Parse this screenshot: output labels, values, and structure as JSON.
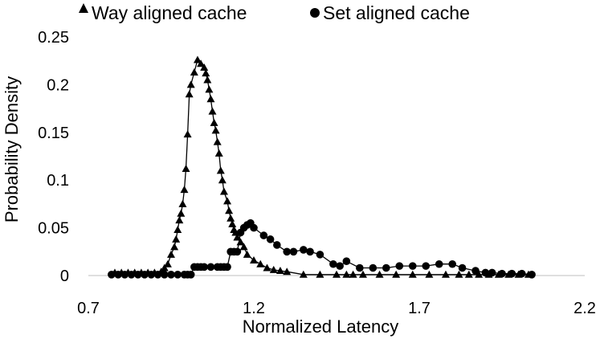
{
  "chart_data": {
    "type": "line",
    "title": "",
    "xlabel": "Normalized Latency",
    "ylabel": "Probability Density",
    "xlim": [
      0.7,
      2.2
    ],
    "ylim": [
      0,
      0.25
    ],
    "x_ticks": [
      "0.7",
      "1.2",
      "1.7",
      "2.2"
    ],
    "y_ticks": [
      "0",
      "0.05",
      "0.1",
      "0.15",
      "0.2",
      "0.25"
    ],
    "grid": false,
    "legend_position": "top",
    "series": [
      {
        "name": "Way aligned cache",
        "marker": "triangle",
        "color": "#000000",
        "points": [
          [
            0.78,
            0.003
          ],
          [
            0.8,
            0.003
          ],
          [
            0.82,
            0.003
          ],
          [
            0.84,
            0.003
          ],
          [
            0.86,
            0.003
          ],
          [
            0.88,
            0.003
          ],
          [
            0.9,
            0.003
          ],
          [
            0.92,
            0.004
          ],
          [
            0.93,
            0.008
          ],
          [
            0.94,
            0.012
          ],
          [
            0.95,
            0.022
          ],
          [
            0.96,
            0.03
          ],
          [
            0.965,
            0.038
          ],
          [
            0.97,
            0.048
          ],
          [
            0.975,
            0.058
          ],
          [
            0.98,
            0.065
          ],
          [
            0.985,
            0.075
          ],
          [
            0.99,
            0.09
          ],
          [
            0.995,
            0.112
          ],
          [
            1.0,
            0.148
          ],
          [
            1.005,
            0.19
          ],
          [
            1.01,
            0.2
          ],
          [
            1.02,
            0.213
          ],
          [
            1.03,
            0.226
          ],
          [
            1.04,
            0.222
          ],
          [
            1.05,
            0.218
          ],
          [
            1.055,
            0.212
          ],
          [
            1.06,
            0.205
          ],
          [
            1.065,
            0.195
          ],
          [
            1.07,
            0.185
          ],
          [
            1.075,
            0.172
          ],
          [
            1.08,
            0.16
          ],
          [
            1.085,
            0.152
          ],
          [
            1.09,
            0.14
          ],
          [
            1.095,
            0.128
          ],
          [
            1.1,
            0.11
          ],
          [
            1.105,
            0.1
          ],
          [
            1.11,
            0.088
          ],
          [
            1.12,
            0.078
          ],
          [
            1.125,
            0.068
          ],
          [
            1.13,
            0.06
          ],
          [
            1.135,
            0.054
          ],
          [
            1.14,
            0.048
          ],
          [
            1.145,
            0.045
          ],
          [
            1.15,
            0.04
          ],
          [
            1.16,
            0.035
          ],
          [
            1.17,
            0.03
          ],
          [
            1.18,
            0.022
          ],
          [
            1.2,
            0.016
          ],
          [
            1.22,
            0.012
          ],
          [
            1.24,
            0.008
          ],
          [
            1.26,
            0.006
          ],
          [
            1.28,
            0.005
          ],
          [
            1.3,
            0.004
          ],
          [
            1.35,
            0.001
          ],
          [
            1.4,
            0.001
          ],
          [
            1.45,
            0.001
          ],
          [
            1.48,
            0.001
          ],
          [
            1.5,
            0.001
          ],
          [
            1.53,
            0.001
          ],
          [
            1.58,
            0.001
          ],
          [
            1.63,
            0.001
          ],
          [
            1.68,
            0.001
          ],
          [
            1.73,
            0.001
          ],
          [
            1.78,
            0.001
          ],
          [
            1.82,
            0.001
          ],
          [
            1.85,
            0.001
          ],
          [
            1.88,
            0.001
          ],
          [
            1.91,
            0.001
          ],
          [
            1.94,
            0.001
          ],
          [
            1.97,
            0.001
          ],
          [
            2.0,
            0.001
          ],
          [
            2.03,
            0.001
          ]
        ]
      },
      {
        "name": "Set aligned cache",
        "marker": "circle",
        "color": "#000000",
        "points": [
          [
            0.77,
            0.001
          ],
          [
            0.79,
            0.001
          ],
          [
            0.81,
            0.001
          ],
          [
            0.83,
            0.001
          ],
          [
            0.85,
            0.001
          ],
          [
            0.87,
            0.001
          ],
          [
            0.89,
            0.001
          ],
          [
            0.91,
            0.001
          ],
          [
            0.93,
            0.001
          ],
          [
            0.95,
            0.001
          ],
          [
            0.97,
            0.001
          ],
          [
            0.99,
            0.001
          ],
          [
            1.0,
            0.001
          ],
          [
            1.01,
            0.001
          ],
          [
            1.02,
            0.009
          ],
          [
            1.03,
            0.009
          ],
          [
            1.04,
            0.009
          ],
          [
            1.05,
            0.009
          ],
          [
            1.07,
            0.009
          ],
          [
            1.09,
            0.009
          ],
          [
            1.1,
            0.009
          ],
          [
            1.11,
            0.009
          ],
          [
            1.12,
            0.009
          ],
          [
            1.13,
            0.025
          ],
          [
            1.14,
            0.025
          ],
          [
            1.15,
            0.025
          ],
          [
            1.16,
            0.045
          ],
          [
            1.17,
            0.05
          ],
          [
            1.18,
            0.053
          ],
          [
            1.19,
            0.055
          ],
          [
            1.2,
            0.05
          ],
          [
            1.23,
            0.042
          ],
          [
            1.25,
            0.038
          ],
          [
            1.27,
            0.032
          ],
          [
            1.3,
            0.025
          ],
          [
            1.32,
            0.025
          ],
          [
            1.35,
            0.027
          ],
          [
            1.37,
            0.025
          ],
          [
            1.4,
            0.022
          ],
          [
            1.44,
            0.012
          ],
          [
            1.46,
            0.01
          ],
          [
            1.48,
            0.015
          ],
          [
            1.52,
            0.008
          ],
          [
            1.56,
            0.008
          ],
          [
            1.6,
            0.008
          ],
          [
            1.64,
            0.01
          ],
          [
            1.68,
            0.01
          ],
          [
            1.72,
            0.01
          ],
          [
            1.76,
            0.012
          ],
          [
            1.8,
            0.012
          ],
          [
            1.83,
            0.008
          ],
          [
            1.87,
            0.005
          ],
          [
            1.9,
            0.003
          ],
          [
            1.92,
            0.003
          ],
          [
            1.95,
            0.002
          ],
          [
            1.98,
            0.002
          ],
          [
            2.01,
            0.002
          ],
          [
            2.04,
            0.001
          ]
        ]
      }
    ]
  }
}
